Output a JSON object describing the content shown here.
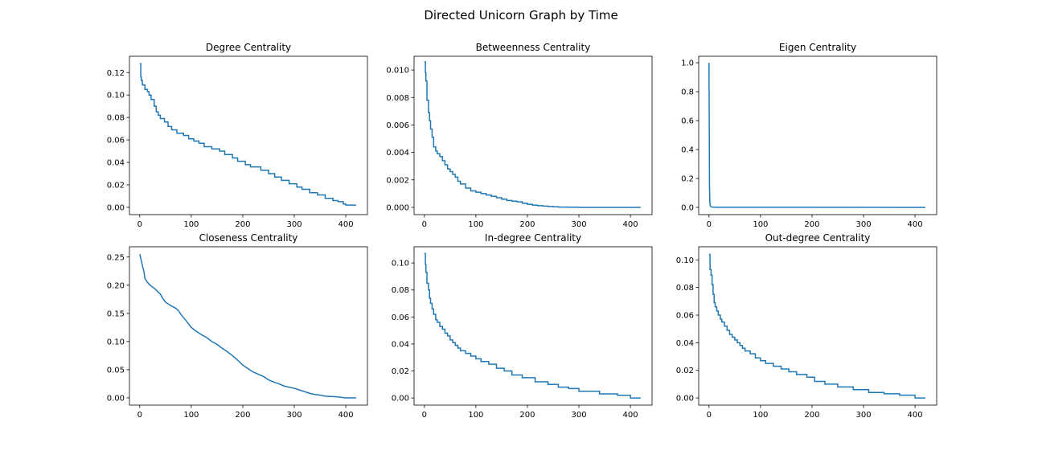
{
  "figure": {
    "title": "Directed Unicorn Graph by Time"
  },
  "colors": {
    "line": "#1f77b4",
    "axis": "#000000",
    "background": "#ffffff"
  },
  "chart_data": [
    {
      "type": "line",
      "title": "Degree Centrality",
      "xlabel": "",
      "ylabel": "",
      "xlim": [
        -20,
        442
      ],
      "ylim": [
        -0.0065,
        0.1345
      ],
      "xticks": [
        0,
        100,
        200,
        300,
        400
      ],
      "yticks": [
        0.0,
        0.02,
        0.04,
        0.06,
        0.08,
        0.1,
        0.12
      ],
      "ytick_labels": [
        "0.00",
        "0.02",
        "0.04",
        "0.06",
        "0.08",
        "0.10",
        "0.12"
      ],
      "series": [
        {
          "x": [
            0,
            2,
            3,
            5,
            10,
            15,
            18,
            22,
            28,
            32,
            36,
            40,
            48,
            55,
            62,
            72,
            85,
            95,
            105,
            115,
            125,
            140,
            155,
            165,
            180,
            190,
            205,
            215,
            235,
            250,
            262,
            275,
            290,
            305,
            315,
            330,
            345,
            360,
            375,
            385,
            395,
            400,
            420
          ],
          "y": [
            0.128,
            0.116,
            0.113,
            0.109,
            0.105,
            0.103,
            0.1,
            0.096,
            0.09,
            0.085,
            0.082,
            0.079,
            0.076,
            0.072,
            0.069,
            0.066,
            0.064,
            0.061,
            0.059,
            0.057,
            0.054,
            0.052,
            0.05,
            0.047,
            0.044,
            0.041,
            0.038,
            0.036,
            0.033,
            0.03,
            0.027,
            0.024,
            0.021,
            0.018,
            0.016,
            0.013,
            0.011,
            0.008,
            0.006,
            0.005,
            0.003,
            0.002,
            0.002
          ],
          "step": true
        }
      ]
    },
    {
      "type": "line",
      "title": "Betweenness Centrality",
      "xlabel": "",
      "ylabel": "",
      "xlim": [
        -20,
        442
      ],
      "ylim": [
        -0.00053,
        0.011
      ],
      "xticks": [
        0,
        100,
        200,
        300,
        400
      ],
      "yticks": [
        0.0,
        0.002,
        0.004,
        0.006,
        0.008,
        0.01
      ],
      "ytick_labels": [
        "0.000",
        "0.002",
        "0.004",
        "0.006",
        "0.008",
        "0.010"
      ],
      "series": [
        {
          "x": [
            0,
            2,
            3,
            5,
            8,
            10,
            12,
            15,
            18,
            22,
            25,
            30,
            35,
            40,
            45,
            50,
            55,
            60,
            65,
            70,
            80,
            90,
            100,
            110,
            120,
            130,
            140,
            150,
            160,
            170,
            180,
            190,
            200,
            210,
            220,
            230,
            240,
            250,
            260,
            280,
            300,
            350,
            420
          ],
          "y": [
            0.0106,
            0.0098,
            0.0092,
            0.0078,
            0.0069,
            0.0063,
            0.0057,
            0.0051,
            0.0044,
            0.0041,
            0.0039,
            0.0037,
            0.0034,
            0.0031,
            0.0028,
            0.0026,
            0.0024,
            0.0022,
            0.0019,
            0.0017,
            0.0014,
            0.0012,
            0.0011,
            0.001,
            0.0009,
            0.0008,
            0.0007,
            0.0006,
            0.0005,
            0.00045,
            0.0004,
            0.0003,
            0.00022,
            0.00016,
            0.00012,
            9e-05,
            6e-05,
            4e-05,
            2e-05,
            1e-05,
            0.0,
            0.0,
            0.0
          ],
          "step": true
        }
      ]
    },
    {
      "type": "line",
      "title": "Eigen Centrality",
      "xlabel": "",
      "ylabel": "",
      "xlim": [
        -20,
        442
      ],
      "ylim": [
        -0.05,
        1.045
      ],
      "xticks": [
        0,
        100,
        200,
        300,
        400
      ],
      "yticks": [
        0.0,
        0.2,
        0.4,
        0.6,
        0.8,
        1.0
      ],
      "ytick_labels": [
        "0.0",
        "0.2",
        "0.4",
        "0.6",
        "0.8",
        "1.0"
      ],
      "series": [
        {
          "x": [
            0,
            1,
            1.5,
            2,
            3,
            5,
            10,
            420
          ],
          "y": [
            1.0,
            0.15,
            0.06,
            0.02,
            0.008,
            0.003,
            0.001,
            0.0
          ],
          "step": false
        }
      ]
    },
    {
      "type": "line",
      "title": "Closeness Centrality",
      "xlabel": "",
      "ylabel": "",
      "xlim": [
        -20,
        442
      ],
      "ylim": [
        -0.0129,
        0.2682
      ],
      "xticks": [
        0,
        100,
        200,
        300,
        400
      ],
      "yticks": [
        0.0,
        0.05,
        0.1,
        0.15,
        0.2,
        0.25
      ],
      "ytick_labels": [
        "0.00",
        "0.05",
        "0.10",
        "0.15",
        "0.20",
        "0.25"
      ],
      "series": [
        {
          "x": [
            0,
            3,
            5,
            8,
            10,
            15,
            20,
            30,
            40,
            45,
            50,
            60,
            70,
            75,
            80,
            90,
            100,
            110,
            120,
            130,
            140,
            150,
            160,
            170,
            180,
            190,
            200,
            210,
            220,
            230,
            240,
            250,
            260,
            270,
            280,
            300,
            310,
            320,
            330,
            340,
            350,
            360,
            380,
            400,
            420
          ],
          "y": [
            0.255,
            0.244,
            0.235,
            0.225,
            0.212,
            0.205,
            0.2,
            0.193,
            0.184,
            0.176,
            0.17,
            0.164,
            0.159,
            0.155,
            0.148,
            0.137,
            0.125,
            0.118,
            0.112,
            0.107,
            0.1,
            0.095,
            0.088,
            0.082,
            0.075,
            0.067,
            0.058,
            0.052,
            0.046,
            0.042,
            0.038,
            0.032,
            0.028,
            0.025,
            0.021,
            0.017,
            0.014,
            0.011,
            0.008,
            0.006,
            0.005,
            0.003,
            0.002,
            0.0,
            0.0
          ],
          "step": false
        }
      ]
    },
    {
      "type": "line",
      "title": "In-degree Centrality",
      "xlabel": "",
      "ylabel": "",
      "xlim": [
        -20,
        442
      ],
      "ylim": [
        -0.0053,
        0.112
      ],
      "xticks": [
        0,
        100,
        200,
        300,
        400
      ],
      "yticks": [
        0.0,
        0.02,
        0.04,
        0.06,
        0.08,
        0.1
      ],
      "ytick_labels": [
        "0.00",
        "0.02",
        "0.04",
        "0.06",
        "0.08",
        "0.10"
      ],
      "series": [
        {
          "x": [
            0,
            2,
            3,
            5,
            8,
            10,
            12,
            15,
            18,
            22,
            25,
            30,
            35,
            40,
            45,
            50,
            55,
            60,
            65,
            70,
            80,
            90,
            100,
            110,
            125,
            140,
            155,
            170,
            190,
            215,
            240,
            260,
            280,
            300,
            340,
            375,
            400,
            420
          ],
          "y": [
            0.107,
            0.099,
            0.093,
            0.085,
            0.08,
            0.074,
            0.07,
            0.066,
            0.062,
            0.058,
            0.056,
            0.053,
            0.051,
            0.048,
            0.046,
            0.043,
            0.041,
            0.039,
            0.037,
            0.035,
            0.033,
            0.031,
            0.029,
            0.027,
            0.025,
            0.022,
            0.02,
            0.017,
            0.015,
            0.012,
            0.01,
            0.008,
            0.007,
            0.005,
            0.003,
            0.002,
            0.0,
            0.0
          ],
          "step": true
        }
      ]
    },
    {
      "type": "line",
      "title": "Out-degree Centrality",
      "xlabel": "",
      "ylabel": "",
      "xlim": [
        -20,
        442
      ],
      "ylim": [
        -0.0052,
        0.1095
      ],
      "xticks": [
        0,
        100,
        200,
        300,
        400
      ],
      "yticks": [
        0.0,
        0.02,
        0.04,
        0.06,
        0.08,
        0.1
      ],
      "ytick_labels": [
        "0.00",
        "0.02",
        "0.04",
        "0.06",
        "0.08",
        "0.10"
      ],
      "series": [
        {
          "x": [
            0,
            2,
            4,
            6,
            8,
            10,
            12,
            15,
            18,
            22,
            25,
            30,
            35,
            40,
            45,
            50,
            55,
            60,
            65,
            70,
            80,
            90,
            100,
            110,
            125,
            140,
            155,
            170,
            190,
            205,
            225,
            250,
            280,
            310,
            340,
            370,
            400,
            420
          ],
          "y": [
            0.104,
            0.093,
            0.089,
            0.082,
            0.075,
            0.069,
            0.066,
            0.063,
            0.06,
            0.057,
            0.055,
            0.052,
            0.049,
            0.046,
            0.044,
            0.042,
            0.04,
            0.038,
            0.036,
            0.034,
            0.032,
            0.029,
            0.027,
            0.025,
            0.023,
            0.021,
            0.019,
            0.017,
            0.015,
            0.012,
            0.01,
            0.008,
            0.006,
            0.004,
            0.003,
            0.002,
            0.0,
            0.0
          ],
          "step": true
        }
      ]
    }
  ]
}
